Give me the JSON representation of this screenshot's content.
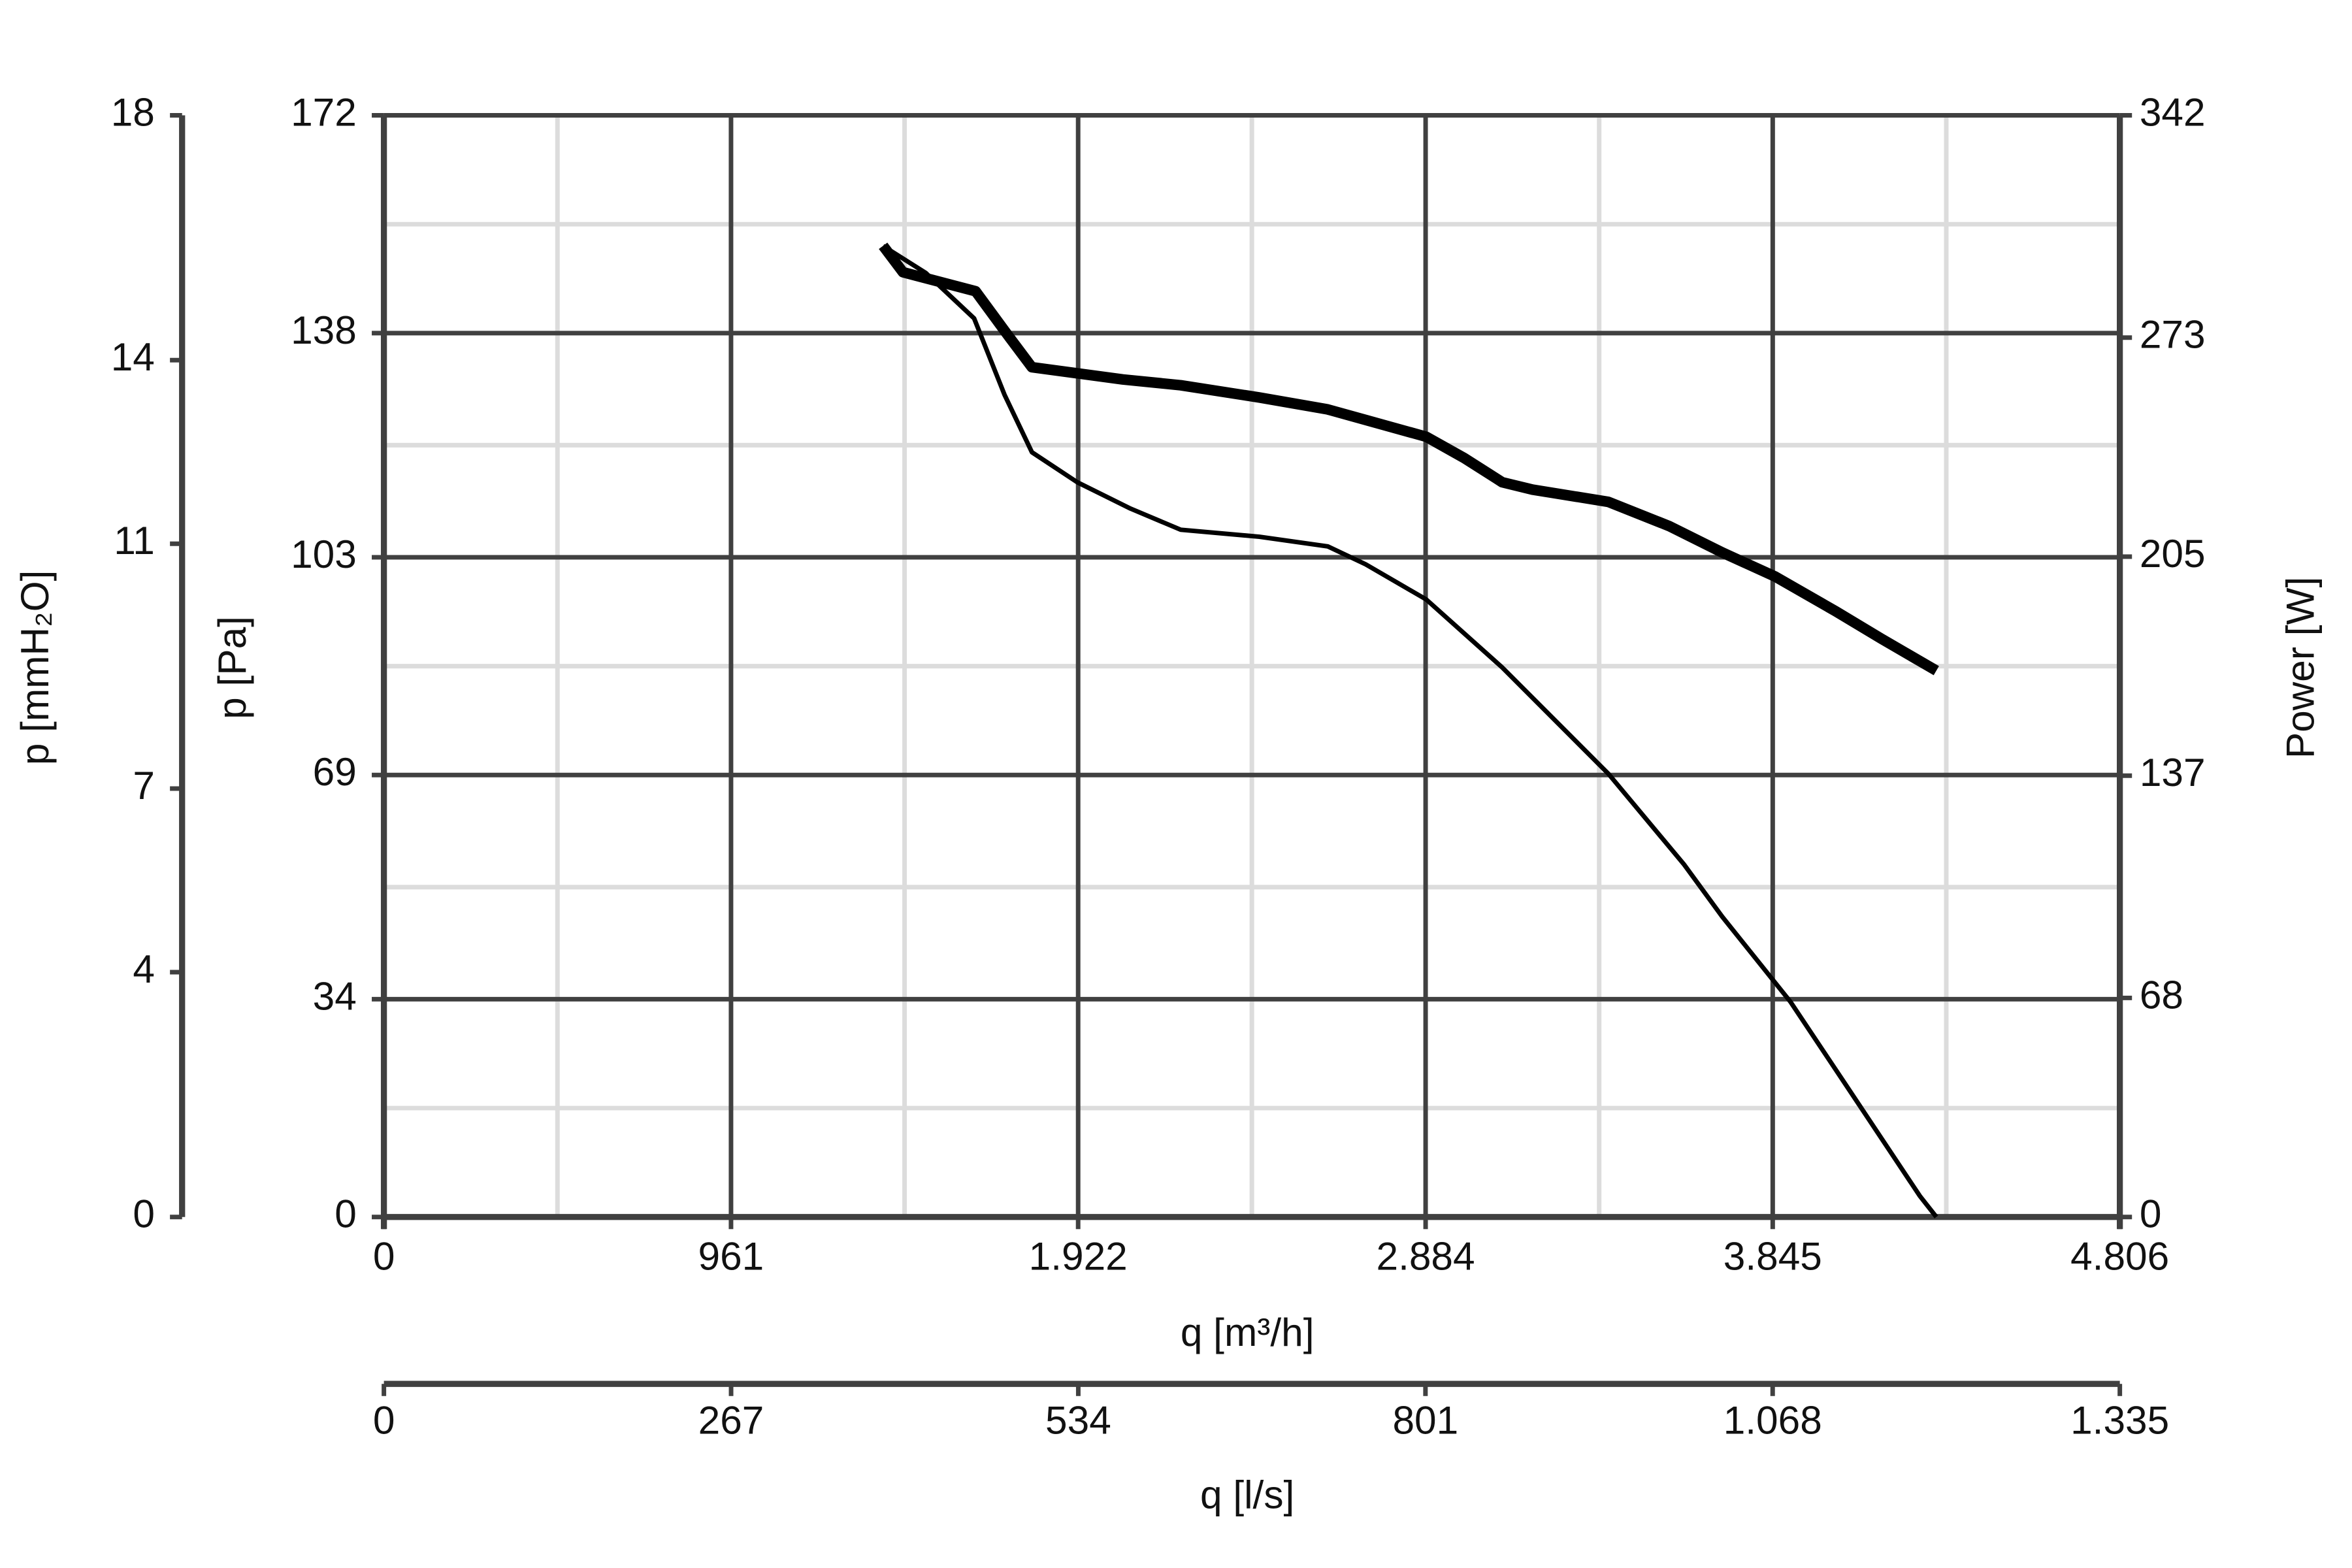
{
  "chart_data": {
    "type": "line",
    "xlabel": "q [m³/h]",
    "x2label": "q [l/s]",
    "ylabel": "p [Pa]",
    "y2label": "Power [W]",
    "y3label": "p [mmH₂O]",
    "xlim": [
      0,
      4806
    ],
    "xticks": [
      0,
      961,
      {
        "value": 1922,
        "label": "1.922"
      },
      {
        "value": 2884,
        "label": "2.884"
      },
      {
        "value": 3845,
        "label": "3.845"
      },
      {
        "value": 4806,
        "label": "4.806"
      }
    ],
    "x2lim": [
      0,
      1335
    ],
    "x2ticks": [
      0,
      267,
      534,
      801,
      {
        "value": 1068,
        "label": "1.068"
      },
      {
        "value": 1335,
        "label": "1.335"
      }
    ],
    "ylim": [
      0,
      172
    ],
    "yticks": [
      0,
      34,
      69,
      103,
      138,
      172
    ],
    "y2lim": [
      0,
      342
    ],
    "y2ticks": [
      0,
      68,
      137,
      205,
      273,
      342
    ],
    "y3lim": [
      0,
      18
    ],
    "y3ticks": [
      0,
      4,
      7,
      11,
      14,
      18
    ],
    "grid": true,
    "minor_grid": true,
    "series": [
      {
        "color": "#000000",
        "line_width": 3,
        "x": [
          1382,
          1500,
          1634,
          1718,
          1794,
          1920,
          2067,
          2206,
          2424,
          2613,
          2718,
          2886,
          3096,
          3390,
          3600,
          3705,
          3894,
          4062,
          4252,
          4298
        ],
        "values": [
          151.6,
          147.4,
          140.3,
          128.4,
          119.4,
          114.7,
          110.6,
          107.3,
          106.2,
          104.7,
          101.9,
          96.4,
          85.8,
          69.2,
          55.0,
          46.9,
          33.6,
          19.4,
          3.3,
          0
        ]
      },
      {
        "color": "#000000",
        "line_width": 7,
        "axis": "y2",
        "x": [
          1382,
          1437,
          1638,
          1731,
          1794,
          1920,
          2046,
          2206,
          2424,
          2613,
          2886,
          2991,
          3096,
          3180,
          3390,
          3558,
          3705,
          3852,
          4020,
          4146,
          4298
        ],
        "values": [
          301.5,
          293.3,
          287.4,
          273.2,
          263.8,
          261.9,
          260.0,
          258.2,
          254.4,
          250.7,
          242.2,
          235.6,
          228.1,
          225.8,
          222.0,
          214.5,
          206.3,
          198.8,
          188.0,
          179.5,
          169.6
        ]
      }
    ]
  }
}
